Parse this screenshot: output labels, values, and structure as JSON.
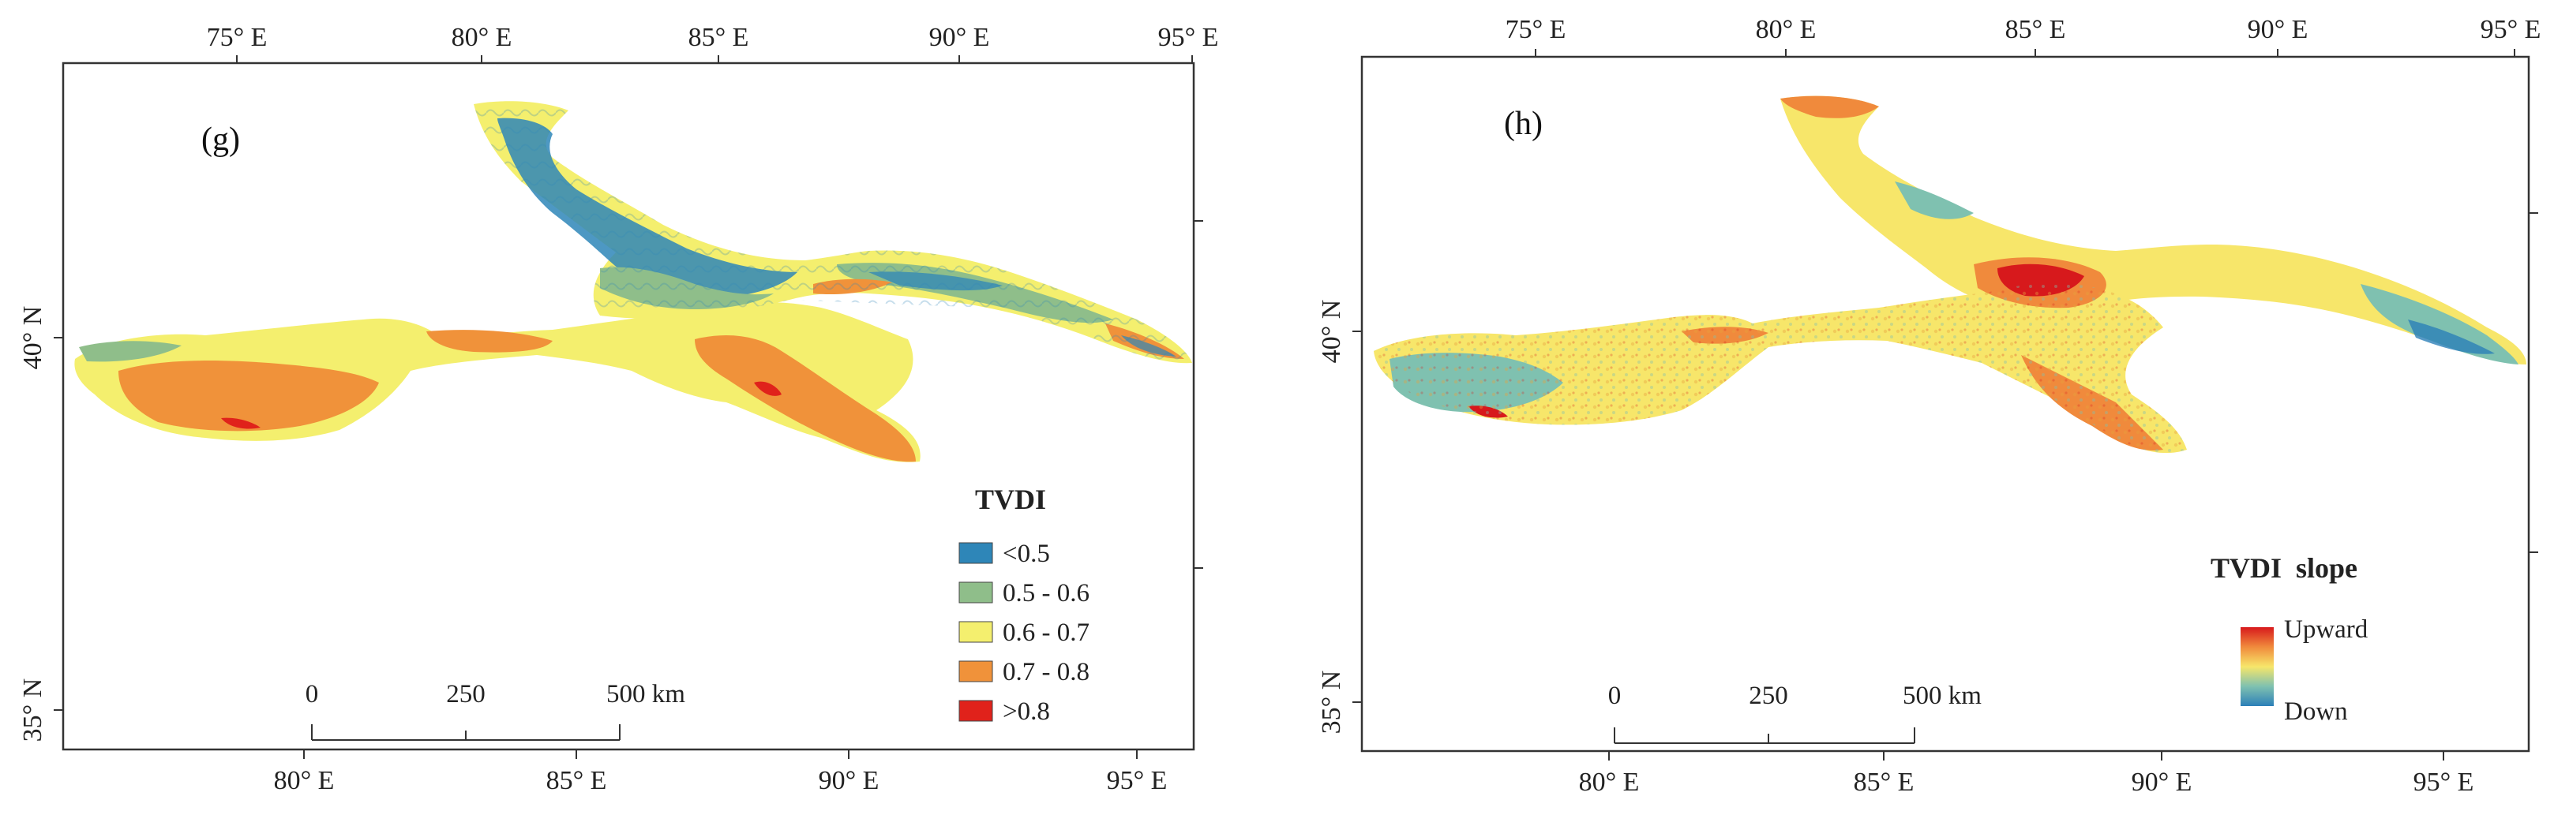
{
  "panels": [
    {
      "id": "g",
      "label": "(g)",
      "top_ticks": [
        "75° E",
        "80° E",
        "85° E",
        "90° E",
        "95° E"
      ],
      "bottom_ticks": [
        "80° E",
        "85° E",
        "90° E",
        "95° E"
      ],
      "left_ticks": [
        "40° N",
        "35° N"
      ],
      "legend": {
        "title": "TVDI",
        "items": [
          {
            "label": "<0.5",
            "color": "#2e86b8"
          },
          {
            "label": "0.5 - 0.6",
            "color": "#8fbe8a"
          },
          {
            "label": "0.6 - 0.7",
            "color": "#f4ef6e"
          },
          {
            "label": "0.7 - 0.8",
            "color": "#f0923a"
          },
          {
            "label": ">0.8",
            "color": "#e0221b"
          }
        ]
      },
      "scale_bar": {
        "labels": [
          "0",
          "250",
          "500 km"
        ]
      }
    },
    {
      "id": "h",
      "label": "(h)",
      "top_ticks": [
        "75° E",
        "80° E",
        "85° E",
        "90° E",
        "95° E"
      ],
      "bottom_ticks": [
        "80° E",
        "85° E",
        "90° E",
        "95° E"
      ],
      "left_ticks": [
        "40° N",
        "35° N"
      ],
      "legend": {
        "title": "TVDI  slope",
        "high_label": "Upward",
        "low_label": "Down",
        "gradient": [
          "#d7191c",
          "#f08a3c",
          "#f7e66a",
          "#7fc1b0",
          "#2c7fb8"
        ]
      },
      "scale_bar": {
        "labels": [
          "0",
          "250",
          "500 km"
        ]
      }
    }
  ]
}
